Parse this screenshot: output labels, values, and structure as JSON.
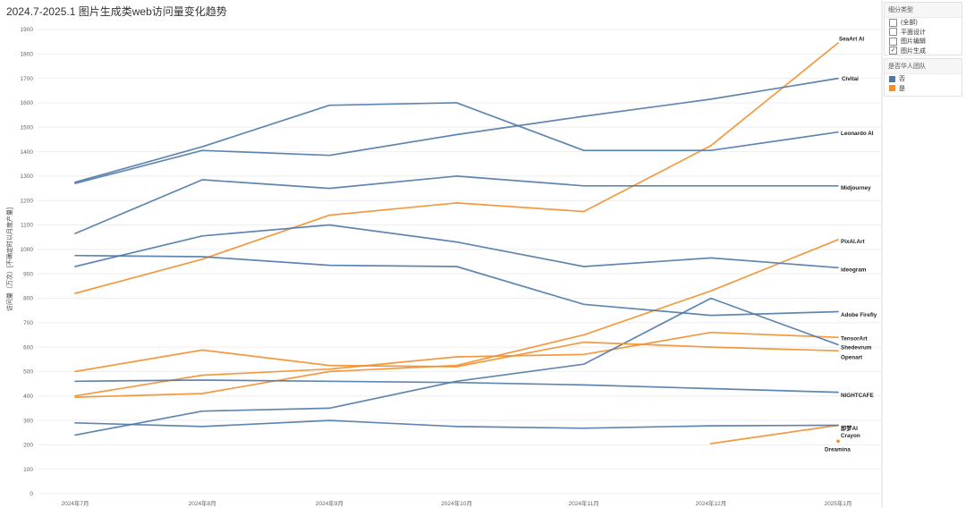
{
  "filter_panel": {
    "title": "细分类型",
    "items": [
      {
        "label": "(全部)",
        "checked": false
      },
      {
        "label": "平面设计",
        "checked": false
      },
      {
        "label": "图片编辑",
        "checked": false
      },
      {
        "label": "图片生成",
        "checked": true
      }
    ]
  },
  "color_legend": {
    "title": "是否华人团队",
    "items": [
      {
        "label": "否",
        "color": "#4e79a7"
      },
      {
        "label": "是",
        "color": "#f28e2b"
      }
    ]
  },
  "chart_data": {
    "type": "line",
    "title": "2024.7-2025.1 图片生成类web访问量变化趋势",
    "ylabel": "访问量（万次）[不确定时以月度产量]",
    "ylim": [
      0,
      1900
    ],
    "yticks": [
      0,
      100,
      200,
      300,
      400,
      500,
      600,
      700,
      800,
      900,
      1000,
      1100,
      1200,
      1300,
      1400,
      1500,
      1600,
      1700,
      1800,
      1900
    ],
    "categories": [
      "2024年7月",
      "2024年8月",
      "2024年9月",
      "2024年10月",
      "2024年11月",
      "2024年12月",
      "2025年1月"
    ],
    "series": [
      {
        "name": "SeaArt AI",
        "color": "#f28e2b",
        "values": [
          820,
          960,
          1140,
          1190,
          1155,
          1425,
          1845
        ]
      },
      {
        "name": "Civitai",
        "color": "#4e79a7",
        "values": [
          1270,
          1405,
          1385,
          1470,
          1545,
          1615,
          1700
        ]
      },
      {
        "name": "Leonardo AI",
        "color": "#4e79a7",
        "values": [
          1275,
          1420,
          1590,
          1600,
          1405,
          1405,
          1480
        ]
      },
      {
        "name": "Midjourney",
        "color": "#4e79a7",
        "values": [
          1065,
          1285,
          1250,
          1300,
          1260,
          1260,
          1260
        ]
      },
      {
        "name": "PixAI.Art",
        "color": "#f28e2b",
        "values": [
          395,
          410,
          500,
          525,
          650,
          830,
          1040
        ]
      },
      {
        "name": "ideogram",
        "color": "#4e79a7",
        "values": [
          930,
          1055,
          1100,
          1030,
          930,
          965,
          925
        ]
      },
      {
        "name": "Adobe Firefly",
        "color": "#4e79a7",
        "values": [
          975,
          970,
          935,
          930,
          775,
          730,
          745
        ]
      },
      {
        "name": "TensorArt",
        "color": "#f28e2b",
        "values": [
          400,
          485,
          510,
          560,
          570,
          660,
          640
        ]
      },
      {
        "name": "Shedevrum",
        "color": "#4e79a7",
        "values": [
          240,
          338,
          350,
          460,
          530,
          800,
          610
        ]
      },
      {
        "name": "Openart",
        "color": "#f28e2b",
        "values": [
          500,
          588,
          525,
          520,
          620,
          600,
          585
        ]
      },
      {
        "name": "NIGHTCAFE",
        "color": "#4e79a7",
        "values": [
          460,
          465,
          460,
          455,
          445,
          430,
          415
        ]
      },
      {
        "name": "即梦AI",
        "color": "#f28e2b",
        "values": [
          null,
          null,
          null,
          null,
          null,
          205,
          280
        ]
      },
      {
        "name": "Crayon",
        "color": "#4e79a7",
        "values": [
          290,
          275,
          300,
          275,
          268,
          278,
          280
        ]
      },
      {
        "name": "Dreamina",
        "color": "#f28e2b",
        "values": [
          null,
          null,
          null,
          null,
          null,
          null,
          215
        ]
      }
    ]
  }
}
